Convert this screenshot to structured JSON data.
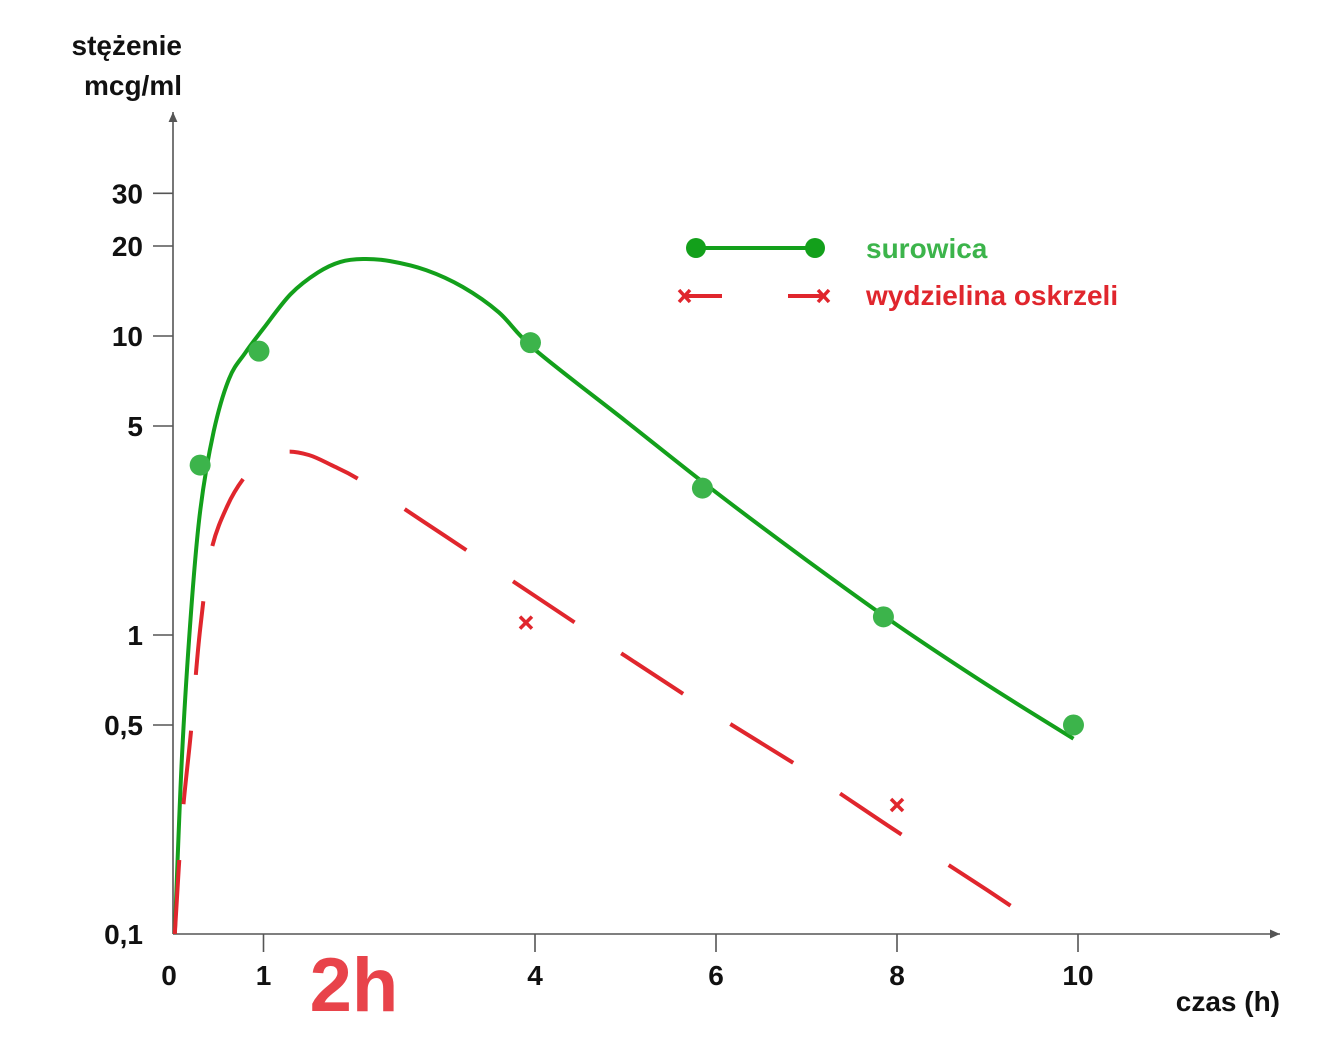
{
  "chart_data": {
    "type": "line",
    "yscale": "log",
    "ylim": [
      0.1,
      40
    ],
    "xlim": [
      0,
      12
    ],
    "ylabel_lines": [
      "stężenie",
      "mcg/ml"
    ],
    "xlabel": "czas (h)",
    "yticks": [
      {
        "value": 30,
        "label": "30"
      },
      {
        "value": 20,
        "label": "20"
      },
      {
        "value": 10,
        "label": "10"
      },
      {
        "value": 5,
        "label": "5"
      },
      {
        "value": 1,
        "label": "1"
      },
      {
        "value": 0.5,
        "label": "0,5"
      },
      {
        "value": 0.1,
        "label": "0,1"
      }
    ],
    "xticks": [
      {
        "value": 0,
        "label": "0"
      },
      {
        "value": 1,
        "label": "1"
      },
      {
        "value": 4,
        "label": "4"
      },
      {
        "value": 6,
        "label": "6"
      },
      {
        "value": 8,
        "label": "8"
      },
      {
        "value": 10,
        "label": "10"
      }
    ],
    "annotation": {
      "text": "2h",
      "x": 2,
      "color": "#e8434a"
    },
    "legend_position": "top-right",
    "series": [
      {
        "name": "surowica",
        "color": "#13a01b",
        "marker_color": "#3cb44b",
        "line_style": "solid",
        "marker": "circle",
        "points": [
          {
            "x": 0.3,
            "y": 3.7
          },
          {
            "x": 0.95,
            "y": 8.9
          },
          {
            "x": 3.95,
            "y": 9.5
          },
          {
            "x": 5.85,
            "y": 3.1
          },
          {
            "x": 7.85,
            "y": 1.15
          },
          {
            "x": 9.95,
            "y": 0.5
          }
        ],
        "curve": [
          {
            "x": 0.02,
            "y": 0.1
          },
          {
            "x": 0.1,
            "y": 0.4
          },
          {
            "x": 0.2,
            "y": 1.2
          },
          {
            "x": 0.3,
            "y": 2.6
          },
          {
            "x": 0.45,
            "y": 4.8
          },
          {
            "x": 0.62,
            "y": 7.2
          },
          {
            "x": 0.8,
            "y": 8.8
          },
          {
            "x": 1.0,
            "y": 10.6
          },
          {
            "x": 1.3,
            "y": 13.8
          },
          {
            "x": 1.6,
            "y": 16.3
          },
          {
            "x": 1.85,
            "y": 17.7
          },
          {
            "x": 2.1,
            "y": 18.1
          },
          {
            "x": 2.4,
            "y": 17.8
          },
          {
            "x": 2.8,
            "y": 16.6
          },
          {
            "x": 3.2,
            "y": 14.6
          },
          {
            "x": 3.6,
            "y": 12.0
          },
          {
            "x": 4.0,
            "y": 9.0
          },
          {
            "x": 5.0,
            "y": 5.2
          },
          {
            "x": 6.0,
            "y": 3.0
          },
          {
            "x": 7.0,
            "y": 1.78
          },
          {
            "x": 8.0,
            "y": 1.08
          },
          {
            "x": 9.0,
            "y": 0.68
          },
          {
            "x": 9.95,
            "y": 0.45
          }
        ]
      },
      {
        "name": "wydzielina oskrzeli",
        "color": "#e0262d",
        "line_style": "dashed",
        "marker": "x",
        "points": [
          {
            "x": 3.9,
            "y": 1.1
          },
          {
            "x": 8.0,
            "y": 0.27
          }
        ],
        "curve": [
          {
            "x": 0.02,
            "y": 0.1
          },
          {
            "x": 0.1,
            "y": 0.24
          },
          {
            "x": 0.2,
            "y": 0.48
          },
          {
            "x": 0.3,
            "y": 1.05
          },
          {
            "x": 0.42,
            "y": 1.9
          },
          {
            "x": 0.6,
            "y": 2.7
          },
          {
            "x": 0.8,
            "y": 3.4
          },
          {
            "x": 1.0,
            "y": 3.85
          },
          {
            "x": 1.25,
            "y": 4.1
          },
          {
            "x": 1.5,
            "y": 4.0
          },
          {
            "x": 1.75,
            "y": 3.7
          },
          {
            "x": 2.1,
            "y": 3.25
          },
          {
            "x": 3.0,
            "y": 2.15
          },
          {
            "x": 4.0,
            "y": 1.35
          },
          {
            "x": 5.0,
            "y": 0.85
          },
          {
            "x": 6.0,
            "y": 0.54
          },
          {
            "x": 7.0,
            "y": 0.35
          },
          {
            "x": 8.0,
            "y": 0.22
          },
          {
            "x": 9.0,
            "y": 0.14
          },
          {
            "x": 9.65,
            "y": 0.103
          }
        ]
      }
    ]
  }
}
